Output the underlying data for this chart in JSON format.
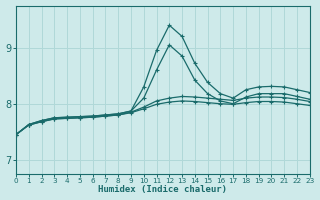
{
  "xlabel": "Humidex (Indice chaleur)",
  "ylabel": "",
  "bg_color": "#ceeaea",
  "grid_color": "#b0d8d8",
  "line_color": "#1a6b6b",
  "x_ticks": [
    0,
    1,
    2,
    3,
    4,
    5,
    6,
    7,
    8,
    9,
    10,
    11,
    12,
    13,
    14,
    15,
    16,
    17,
    18,
    19,
    20,
    21,
    22,
    23
  ],
  "y_ticks": [
    7,
    8,
    9
  ],
  "xlim": [
    0,
    23
  ],
  "ylim": [
    6.75,
    9.75
  ],
  "series": [
    [
      7.45,
      7.63,
      7.7,
      7.75,
      7.76,
      7.77,
      7.78,
      7.8,
      7.82,
      7.87,
      8.3,
      8.95,
      9.4,
      9.2,
      8.72,
      8.38,
      8.18,
      8.1,
      8.25,
      8.3,
      8.31,
      8.3,
      8.25,
      8.2
    ],
    [
      7.45,
      7.63,
      7.7,
      7.75,
      7.76,
      7.77,
      7.78,
      7.8,
      7.82,
      7.87,
      8.1,
      8.6,
      9.05,
      8.85,
      8.42,
      8.18,
      8.05,
      8.0,
      8.12,
      8.18,
      8.18,
      8.18,
      8.13,
      8.08
    ],
    [
      7.45,
      7.62,
      7.68,
      7.73,
      7.74,
      7.75,
      7.76,
      7.78,
      7.8,
      7.85,
      7.94,
      8.05,
      8.1,
      8.13,
      8.12,
      8.1,
      8.08,
      8.06,
      8.1,
      8.12,
      8.12,
      8.11,
      8.08,
      8.04
    ],
    [
      7.45,
      7.62,
      7.68,
      7.73,
      7.74,
      7.75,
      7.76,
      7.78,
      7.8,
      7.84,
      7.91,
      7.99,
      8.03,
      8.05,
      8.04,
      8.02,
      8.0,
      7.99,
      8.02,
      8.04,
      8.04,
      8.03,
      8.0,
      7.97
    ]
  ]
}
